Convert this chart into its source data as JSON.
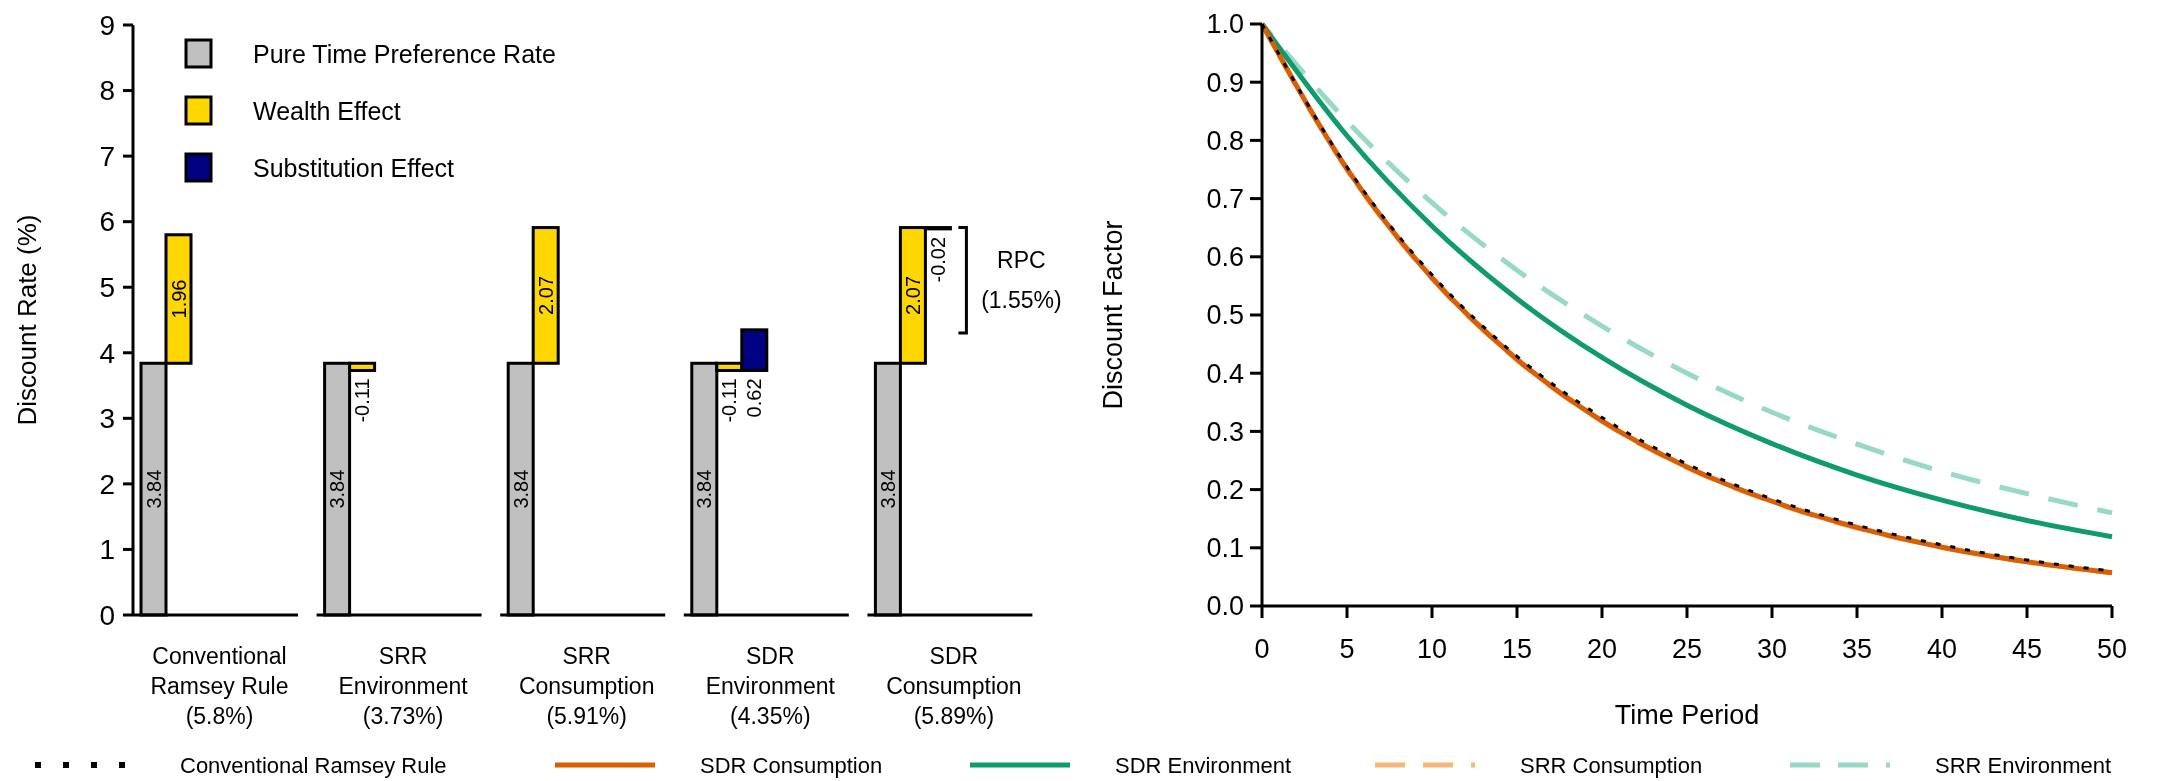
{
  "chart_data": [
    {
      "type": "bar",
      "ylabel": "Discount Rate (%)",
      "categories": [
        "Conventional\nRamsey Rule\n(5.8%)",
        "SRR\nEnvironment\n(3.73%)",
        "SRR\nConsumption\n(5.91%)",
        "SDR\nEnvironment\n(4.35%)",
        "SDR\nConsumption\n(5.89%)"
      ],
      "series": [
        {
          "name": "Pure Time Preference Rate",
          "color": "#c0c0c0",
          "values": [
            3.84,
            3.84,
            3.84,
            3.84,
            3.84
          ],
          "base": [
            0,
            0,
            0,
            0,
            0
          ]
        },
        {
          "name": "Wealth Effect",
          "color": "#ffd700",
          "values": [
            1.96,
            -0.11,
            2.07,
            -0.11,
            2.07
          ],
          "base": [
            3.84,
            3.84,
            3.84,
            3.84,
            3.84
          ]
        },
        {
          "name": "Substitution Effect",
          "color": "#000080",
          "values": [
            null,
            null,
            null,
            0.62,
            -0.02
          ],
          "base": [
            null,
            null,
            null,
            3.73,
            5.91
          ]
        }
      ],
      "ylim": [
        0,
        9
      ],
      "yticks": [
        0,
        1,
        2,
        3,
        4,
        5,
        6,
        7,
        8,
        9
      ],
      "data_labels": true,
      "legend": "top left",
      "annotations": [
        "RPC (1.55%)"
      ]
    },
    {
      "type": "line",
      "xlabel": "Time Period",
      "ylabel": "Discount Factor",
      "x": [
        0,
        5,
        10,
        15,
        20,
        25,
        30,
        35,
        40,
        45,
        50
      ],
      "series": [
        {
          "name": "Conventional Ramsey Rule",
          "color": "#000000",
          "line_style": "dotted",
          "values": [
            1,
            0.754,
            0.569,
            0.429,
            0.324,
            0.244,
            0.184,
            0.139,
            0.105,
            0.079,
            0.06
          ]
        },
        {
          "name": "SDR Consumption",
          "color": "#d95f02",
          "line_style": "solid",
          "values": [
            1,
            0.751,
            0.564,
            0.424,
            0.318,
            0.239,
            0.18,
            0.135,
            0.101,
            0.076,
            0.057
          ]
        },
        {
          "name": "SDR Environment",
          "color": "#0f9b6e",
          "line_style": "solid",
          "values": [
            1,
            0.808,
            0.653,
            0.528,
            0.427,
            0.345,
            0.279,
            0.225,
            0.182,
            0.147,
            0.119
          ]
        },
        {
          "name": "SRR Consumption",
          "color": "#f6b57c",
          "line_style": "dashed",
          "values": [
            1,
            0.75,
            0.563,
            0.423,
            0.317,
            0.238,
            0.179,
            0.134,
            0.101,
            0.076,
            0.057
          ]
        },
        {
          "name": "SRR Environment",
          "color": "#98d8c6",
          "line_style": "dashed",
          "values": [
            1,
            0.833,
            0.693,
            0.577,
            0.481,
            0.4,
            0.333,
            0.278,
            0.231,
            0.193,
            0.16
          ]
        }
      ],
      "xlim": [
        0,
        50
      ],
      "xticks": [
        0,
        5,
        10,
        15,
        20,
        25,
        30,
        35,
        40,
        45,
        50
      ],
      "ylim": [
        0,
        1
      ],
      "yticks": [
        {
          "value": 0,
          "label": "0.0"
        },
        {
          "value": 0.1,
          "label": "0.1"
        },
        {
          "value": 0.2,
          "label": "0.2"
        },
        {
          "value": 0.3,
          "label": "0.3"
        },
        {
          "value": 0.4,
          "label": "0.4"
        },
        {
          "value": 0.5,
          "label": "0.5"
        },
        {
          "value": 0.6,
          "label": "0.6"
        },
        {
          "value": 0.7,
          "label": "0.7"
        },
        {
          "value": 0.8,
          "label": "0.8"
        },
        {
          "value": 0.9,
          "label": "0.9"
        },
        {
          "value": 1,
          "label": "1.0"
        }
      ],
      "legend": "bottom"
    }
  ]
}
